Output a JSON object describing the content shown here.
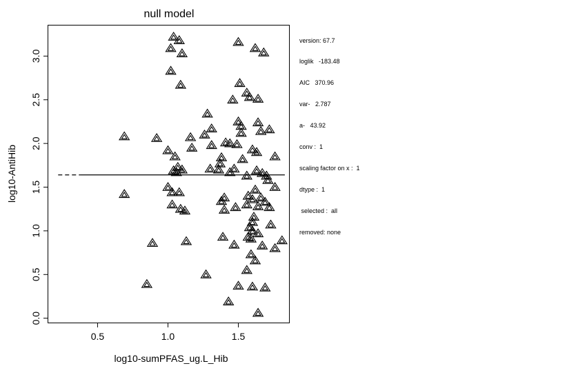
{
  "chart_data": {
    "type": "scatter",
    "title": "null model",
    "xlabel": "log10-sumPFAS_ug.L_Hib",
    "ylabel": "log10-AntiHib",
    "xlim": [
      0.15,
      1.86
    ],
    "ylim": [
      -0.05,
      3.35
    ],
    "x_ticks": [
      "0.5",
      "1.0",
      "1.5"
    ],
    "y_ticks": [
      "0.0",
      "0.5",
      "1.0",
      "1.5",
      "2.0",
      "2.5",
      "3.0"
    ],
    "grid": false,
    "marker": "double-triangle",
    "fit_line": {
      "y": 1.64,
      "dashed_x": [
        0.22,
        0.38
      ],
      "solid_x": [
        0.38,
        1.83
      ]
    },
    "points": [
      {
        "x": 1.04,
        "y": 3.22
      },
      {
        "x": 1.08,
        "y": 3.18
      },
      {
        "x": 1.02,
        "y": 3.09
      },
      {
        "x": 1.1,
        "y": 3.03
      },
      {
        "x": 1.5,
        "y": 3.16
      },
      {
        "x": 1.62,
        "y": 3.09
      },
      {
        "x": 1.68,
        "y": 3.04
      },
      {
        "x": 1.02,
        "y": 2.83
      },
      {
        "x": 1.09,
        "y": 2.67
      },
      {
        "x": 1.51,
        "y": 2.69
      },
      {
        "x": 1.56,
        "y": 2.58
      },
      {
        "x": 1.58,
        "y": 2.53
      },
      {
        "x": 1.64,
        "y": 2.51
      },
      {
        "x": 1.46,
        "y": 2.5
      },
      {
        "x": 1.28,
        "y": 2.34
      },
      {
        "x": 1.5,
        "y": 2.25
      },
      {
        "x": 1.52,
        "y": 2.2
      },
      {
        "x": 1.64,
        "y": 2.24
      },
      {
        "x": 1.66,
        "y": 2.14
      },
      {
        "x": 1.72,
        "y": 2.16
      },
      {
        "x": 1.52,
        "y": 2.12
      },
      {
        "x": 1.31,
        "y": 2.17
      },
      {
        "x": 1.26,
        "y": 2.1
      },
      {
        "x": 0.69,
        "y": 2.08
      },
      {
        "x": 0.92,
        "y": 2.06
      },
      {
        "x": 1.16,
        "y": 2.07
      },
      {
        "x": 1.41,
        "y": 2.01
      },
      {
        "x": 1.44,
        "y": 2.0
      },
      {
        "x": 1.49,
        "y": 1.99
      },
      {
        "x": 1.31,
        "y": 1.98
      },
      {
        "x": 1.17,
        "y": 1.95
      },
      {
        "x": 1.0,
        "y": 1.92
      },
      {
        "x": 1.6,
        "y": 1.93
      },
      {
        "x": 1.63,
        "y": 1.9
      },
      {
        "x": 1.05,
        "y": 1.85
      },
      {
        "x": 1.38,
        "y": 1.84
      },
      {
        "x": 1.53,
        "y": 1.82
      },
      {
        "x": 1.76,
        "y": 1.85
      },
      {
        "x": 1.37,
        "y": 1.77
      },
      {
        "x": 1.07,
        "y": 1.73
      },
      {
        "x": 1.1,
        "y": 1.7
      },
      {
        "x": 1.04,
        "y": 1.69
      },
      {
        "x": 1.06,
        "y": 1.67
      },
      {
        "x": 1.3,
        "y": 1.71
      },
      {
        "x": 1.36,
        "y": 1.7
      },
      {
        "x": 1.47,
        "y": 1.71
      },
      {
        "x": 1.44,
        "y": 1.67
      },
      {
        "x": 1.56,
        "y": 1.63
      },
      {
        "x": 1.63,
        "y": 1.69
      },
      {
        "x": 1.67,
        "y": 1.66
      },
      {
        "x": 1.7,
        "y": 1.63
      },
      {
        "x": 1.71,
        "y": 1.58
      },
      {
        "x": 1.76,
        "y": 1.5
      },
      {
        "x": 1.0,
        "y": 1.5
      },
      {
        "x": 1.03,
        "y": 1.44
      },
      {
        "x": 0.69,
        "y": 1.42
      },
      {
        "x": 1.08,
        "y": 1.44
      },
      {
        "x": 1.62,
        "y": 1.47
      },
      {
        "x": 1.57,
        "y": 1.4
      },
      {
        "x": 1.4,
        "y": 1.38
      },
      {
        "x": 1.38,
        "y": 1.34
      },
      {
        "x": 1.6,
        "y": 1.36
      },
      {
        "x": 1.66,
        "y": 1.38
      },
      {
        "x": 1.69,
        "y": 1.33
      },
      {
        "x": 1.72,
        "y": 1.27
      },
      {
        "x": 1.03,
        "y": 1.3
      },
      {
        "x": 1.48,
        "y": 1.27
      },
      {
        "x": 1.56,
        "y": 1.3
      },
      {
        "x": 1.64,
        "y": 1.28
      },
      {
        "x": 1.09,
        "y": 1.25
      },
      {
        "x": 1.12,
        "y": 1.23
      },
      {
        "x": 1.4,
        "y": 1.24
      },
      {
        "x": 1.61,
        "y": 1.16
      },
      {
        "x": 1.6,
        "y": 1.1
      },
      {
        "x": 1.73,
        "y": 1.07
      },
      {
        "x": 1.58,
        "y": 1.04
      },
      {
        "x": 1.6,
        "y": 1.0
      },
      {
        "x": 1.64,
        "y": 0.97
      },
      {
        "x": 1.57,
        "y": 0.93
      },
      {
        "x": 1.59,
        "y": 0.91
      },
      {
        "x": 1.39,
        "y": 0.93
      },
      {
        "x": 1.13,
        "y": 0.88
      },
      {
        "x": 0.89,
        "y": 0.86
      },
      {
        "x": 1.47,
        "y": 0.84
      },
      {
        "x": 1.67,
        "y": 0.83
      },
      {
        "x": 1.76,
        "y": 0.8
      },
      {
        "x": 1.81,
        "y": 0.89
      },
      {
        "x": 1.59,
        "y": 0.73
      },
      {
        "x": 1.62,
        "y": 0.66
      },
      {
        "x": 1.56,
        "y": 0.55
      },
      {
        "x": 1.27,
        "y": 0.5
      },
      {
        "x": 0.85,
        "y": 0.39
      },
      {
        "x": 1.5,
        "y": 0.37
      },
      {
        "x": 1.6,
        "y": 0.36
      },
      {
        "x": 1.69,
        "y": 0.35
      },
      {
        "x": 1.43,
        "y": 0.19
      },
      {
        "x": 1.64,
        "y": 0.06
      }
    ]
  },
  "info_panel": {
    "lines": [
      "version: 67.7",
      "loglik   -183.48",
      "AIC   370.96",
      "var-   2.787",
      "a-   43.92",
      "conv :  1",
      "scaling factor on x :  1",
      "dtype :  1",
      " selected :  all",
      "removed: none"
    ]
  }
}
